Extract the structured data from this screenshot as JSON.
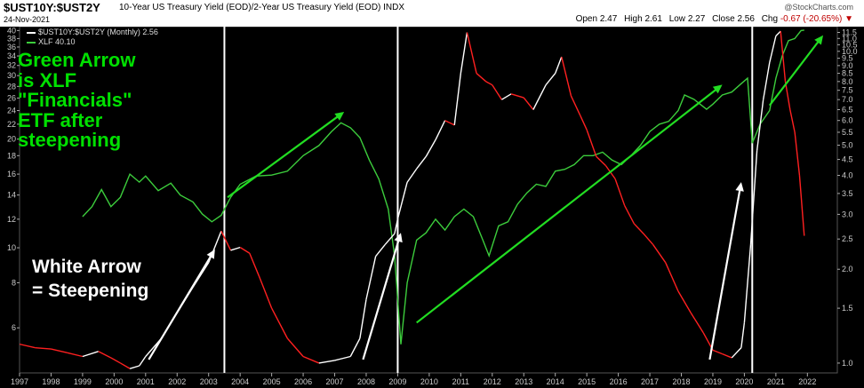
{
  "header": {
    "symbol": "$UST10Y:$UST2Y",
    "description": "10-Year US Treasury Yield (EOD)/2-Year US Treasury Yield (EOD)  INDX",
    "date": "24-Nov-2021",
    "brand": "@StockCharts.com",
    "open_label": "Open",
    "open": "2.47",
    "high_label": "High",
    "high": "2.61",
    "low_label": "Low",
    "low": "2.27",
    "close_label": "Close",
    "close": "2.56",
    "chg_label": "Chg",
    "chg": "-0.67 (-20.65%)"
  },
  "legend": {
    "ratio": "$UST10Y:$UST2Y (Monthly) 2.56",
    "xlf": "XLF 40.10"
  },
  "annotations": {
    "green": "Green Arrow\nis XLF\n\"Financials\"\nETF after\nsteepening",
    "white": "White Arrow\n= Steepening"
  },
  "colors": {
    "rising": "#ffffff",
    "falling": "#ff2020",
    "xlf": "#3ccc3c",
    "green_arrow": "#22dd22",
    "white_arrow": "#ffffff",
    "marker": "#ffffff"
  },
  "chart_data": {
    "type": "line",
    "scale": "log",
    "x_ticks": [
      "1997",
      "1998",
      "1999",
      "2000",
      "2001",
      "2002",
      "2003",
      "2004",
      "2005",
      "2006",
      "2007",
      "2008",
      "2009",
      "2010",
      "2011",
      "2012",
      "2013",
      "2014",
      "2015",
      "2016",
      "2017",
      "2018",
      "2019",
      "2020",
      "2021",
      "2022"
    ],
    "left_axis": {
      "label": "XLF",
      "ticks": [
        6,
        8,
        10,
        12,
        14,
        16,
        18,
        20,
        22,
        24,
        26,
        28,
        30,
        32,
        34,
        36,
        38,
        40
      ],
      "range": [
        4.5,
        41
      ]
    },
    "right_axis": {
      "label": "$UST10Y:$UST2Y",
      "ticks": [
        1.0,
        1.5,
        2.0,
        2.5,
        3.0,
        3.5,
        4.0,
        4.5,
        5.0,
        5.5,
        6.0,
        6.5,
        7.0,
        7.5,
        8.0,
        8.5,
        9.0,
        9.5,
        10.0,
        10.5,
        11.0,
        11.5
      ],
      "range": [
        0.93,
        12
      ]
    },
    "markers": [
      2003.5,
      2009.0,
      2020.25
    ],
    "series": [
      {
        "name": "$UST10Y:$UST2Y",
        "axis": "right",
        "points": [
          [
            1997.0,
            1.15
          ],
          [
            1997.5,
            1.12
          ],
          [
            1998.0,
            1.11
          ],
          [
            1998.5,
            1.08
          ],
          [
            1999.0,
            1.05
          ],
          [
            1999.5,
            1.09
          ],
          [
            1999.9,
            1.04
          ],
          [
            2000.2,
            1.0
          ],
          [
            2000.5,
            0.96
          ],
          [
            2000.8,
            0.98
          ],
          [
            2001.0,
            1.05
          ],
          [
            2001.5,
            1.2
          ],
          [
            2002.0,
            1.45
          ],
          [
            2002.5,
            1.75
          ],
          [
            2003.0,
            2.1
          ],
          [
            2003.4,
            2.65
          ],
          [
            2003.7,
            2.3
          ],
          [
            2004.0,
            2.35
          ],
          [
            2004.3,
            2.25
          ],
          [
            2004.6,
            1.9
          ],
          [
            2005.0,
            1.5
          ],
          [
            2005.5,
            1.2
          ],
          [
            2006.0,
            1.05
          ],
          [
            2006.5,
            1.0
          ],
          [
            2007.0,
            1.02
          ],
          [
            2007.5,
            1.05
          ],
          [
            2007.8,
            1.2
          ],
          [
            2008.0,
            1.6
          ],
          [
            2008.3,
            2.2
          ],
          [
            2008.6,
            2.4
          ],
          [
            2008.9,
            2.6
          ],
          [
            2009.0,
            2.9
          ],
          [
            2009.3,
            3.8
          ],
          [
            2009.6,
            4.2
          ],
          [
            2009.9,
            4.6
          ],
          [
            2010.2,
            5.2
          ],
          [
            2010.5,
            6.0
          ],
          [
            2010.8,
            5.8
          ],
          [
            2011.0,
            8.5
          ],
          [
            2011.2,
            11.5
          ],
          [
            2011.5,
            8.5
          ],
          [
            2011.8,
            8.0
          ],
          [
            2012.0,
            7.8
          ],
          [
            2012.3,
            7.0
          ],
          [
            2012.6,
            7.3
          ],
          [
            2013.0,
            7.1
          ],
          [
            2013.3,
            6.5
          ],
          [
            2013.7,
            7.8
          ],
          [
            2014.0,
            8.5
          ],
          [
            2014.2,
            9.6
          ],
          [
            2014.5,
            7.2
          ],
          [
            2014.8,
            6.2
          ],
          [
            2015.0,
            5.6
          ],
          [
            2015.3,
            4.6
          ],
          [
            2015.6,
            4.3
          ],
          [
            2015.9,
            3.9
          ],
          [
            2016.2,
            3.2
          ],
          [
            2016.5,
            2.8
          ],
          [
            2016.8,
            2.6
          ],
          [
            2017.1,
            2.4
          ],
          [
            2017.5,
            2.1
          ],
          [
            2017.9,
            1.7
          ],
          [
            2018.3,
            1.45
          ],
          [
            2018.7,
            1.25
          ],
          [
            2019.0,
            1.1
          ],
          [
            2019.3,
            1.07
          ],
          [
            2019.6,
            1.04
          ],
          [
            2019.9,
            1.12
          ],
          [
            2020.0,
            1.35
          ],
          [
            2020.2,
            2.4
          ],
          [
            2020.4,
            4.8
          ],
          [
            2020.6,
            7.0
          ],
          [
            2020.8,
            9.2
          ],
          [
            2021.0,
            11.2
          ],
          [
            2021.15,
            11.6
          ],
          [
            2021.3,
            8.0
          ],
          [
            2021.45,
            6.5
          ],
          [
            2021.6,
            5.5
          ],
          [
            2021.75,
            4.0
          ],
          [
            2021.9,
            2.56
          ]
        ]
      },
      {
        "name": "XLF",
        "axis": "left",
        "points": [
          [
            1999.0,
            12.2
          ],
          [
            1999.3,
            13.0
          ],
          [
            1999.6,
            14.5
          ],
          [
            1999.9,
            13.0
          ],
          [
            2000.2,
            13.8
          ],
          [
            2000.5,
            16.0
          ],
          [
            2000.8,
            15.2
          ],
          [
            2001.0,
            15.8
          ],
          [
            2001.4,
            14.4
          ],
          [
            2001.8,
            15.1
          ],
          [
            2002.1,
            14.0
          ],
          [
            2002.5,
            13.4
          ],
          [
            2002.8,
            12.4
          ],
          [
            2003.1,
            11.8
          ],
          [
            2003.4,
            12.3
          ],
          [
            2003.7,
            13.8
          ],
          [
            2004.0,
            15.0
          ],
          [
            2004.5,
            15.8
          ],
          [
            2005.0,
            15.9
          ],
          [
            2005.5,
            16.3
          ],
          [
            2006.0,
            18.0
          ],
          [
            2006.5,
            19.2
          ],
          [
            2006.9,
            21.0
          ],
          [
            2007.2,
            22.2
          ],
          [
            2007.5,
            21.5
          ],
          [
            2007.8,
            20.2
          ],
          [
            2008.1,
            17.5
          ],
          [
            2008.4,
            15.5
          ],
          [
            2008.7,
            12.8
          ],
          [
            2008.9,
            9.5
          ],
          [
            2009.0,
            7.2
          ],
          [
            2009.1,
            5.4
          ],
          [
            2009.3,
            8.0
          ],
          [
            2009.6,
            10.5
          ],
          [
            2009.9,
            11.0
          ],
          [
            2010.2,
            12.0
          ],
          [
            2010.5,
            11.2
          ],
          [
            2010.8,
            12.2
          ],
          [
            2011.1,
            12.8
          ],
          [
            2011.4,
            12.2
          ],
          [
            2011.7,
            10.5
          ],
          [
            2011.9,
            9.5
          ],
          [
            2012.2,
            11.5
          ],
          [
            2012.5,
            11.8
          ],
          [
            2012.8,
            13.2
          ],
          [
            2013.1,
            14.2
          ],
          [
            2013.4,
            15.0
          ],
          [
            2013.7,
            14.8
          ],
          [
            2014.0,
            16.3
          ],
          [
            2014.3,
            16.5
          ],
          [
            2014.6,
            17.0
          ],
          [
            2014.9,
            18.0
          ],
          [
            2015.2,
            18.0
          ],
          [
            2015.5,
            18.4
          ],
          [
            2015.8,
            17.5
          ],
          [
            2016.1,
            17.0
          ],
          [
            2016.4,
            18.0
          ],
          [
            2016.7,
            19.2
          ],
          [
            2017.0,
            21.0
          ],
          [
            2017.3,
            22.0
          ],
          [
            2017.6,
            22.4
          ],
          [
            2017.9,
            24.0
          ],
          [
            2018.1,
            26.5
          ],
          [
            2018.4,
            25.8
          ],
          [
            2018.8,
            24.2
          ],
          [
            2019.0,
            25.0
          ],
          [
            2019.3,
            26.5
          ],
          [
            2019.6,
            27.0
          ],
          [
            2019.9,
            28.5
          ],
          [
            2020.1,
            29.5
          ],
          [
            2020.25,
            19.5
          ],
          [
            2020.5,
            22.0
          ],
          [
            2020.8,
            24.0
          ],
          [
            2021.0,
            29.5
          ],
          [
            2021.2,
            34.0
          ],
          [
            2021.4,
            37.5
          ],
          [
            2021.6,
            38.0
          ],
          [
            2021.8,
            40.0
          ],
          [
            2021.9,
            40.1
          ]
        ]
      }
    ],
    "arrows": [
      {
        "kind": "green",
        "from": [
          2003.6,
          13.8
        ],
        "to": [
          2007.3,
          23.8
        ]
      },
      {
        "kind": "green",
        "from": [
          2009.6,
          6.2
        ],
        "to": [
          2019.3,
          28.3
        ]
      },
      {
        "kind": "green",
        "from": [
          2020.8,
          24.8
        ],
        "to": [
          2022.5,
          38.8
        ]
      },
      {
        "kind": "white",
        "from": [
          2001.1,
          4.9
        ],
        "to": [
          2003.2,
          9.9
        ]
      },
      {
        "kind": "white",
        "from": [
          2007.9,
          4.9
        ],
        "to": [
          2009.1,
          11.0
        ]
      },
      {
        "kind": "white",
        "from": [
          2018.9,
          4.9
        ],
        "to": [
          2019.9,
          15.2
        ]
      }
    ]
  }
}
